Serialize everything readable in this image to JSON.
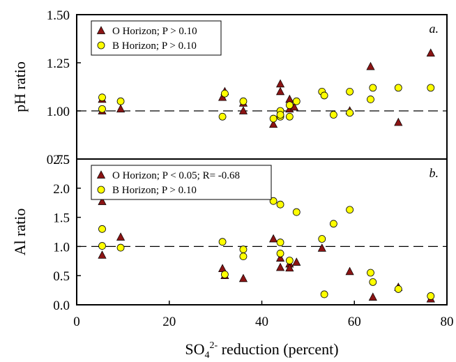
{
  "chart_data": [
    {
      "type": "scatter",
      "panel_tag": "a.",
      "ylabel": "pH ratio",
      "xlim": [
        0,
        80
      ],
      "ylim": [
        0.75,
        1.5
      ],
      "yticks": [
        "0.75",
        "1.00",
        "1.25",
        "1.50"
      ],
      "reference_line": 1.0,
      "legend_position": "top-left",
      "series": [
        {
          "name": "O Horizon; P > 0.10",
          "marker": "triangle",
          "color": "#8b1414",
          "x": [
            5.5,
            5.5,
            9.5,
            31.5,
            32.0,
            36.0,
            36.0,
            42.5,
            44.0,
            44.0,
            46.0,
            46.0,
            47.0,
            59.0,
            63.5,
            69.5,
            76.5
          ],
          "y": [
            1.06,
            1.0,
            1.01,
            1.07,
            1.1,
            1.0,
            1.04,
            0.93,
            1.14,
            1.1,
            1.06,
            1.01,
            1.02,
            1.0,
            1.23,
            0.94,
            1.3
          ]
        },
        {
          "name": "B Horizon; P > 0.10",
          "marker": "circle",
          "color": "#ffff00",
          "x": [
            5.5,
            5.5,
            9.5,
            31.5,
            32.0,
            36.0,
            42.5,
            44.0,
            44.0,
            44.0,
            46.0,
            46.0,
            47.5,
            53.0,
            53.5,
            55.5,
            59.0,
            59.0,
            63.5,
            64.0,
            69.5,
            76.5
          ],
          "y": [
            1.07,
            1.01,
            1.05,
            0.97,
            1.09,
            1.05,
            0.96,
            1.0,
            0.97,
            0.98,
            0.97,
            1.03,
            1.05,
            1.1,
            1.08,
            0.98,
            1.1,
            0.99,
            1.06,
            1.12,
            1.12,
            1.12
          ]
        }
      ]
    },
    {
      "type": "scatter",
      "panel_tag": "b.",
      "ylabel": "Al ratio",
      "xlabel": "SO4 2- reduction (percent)",
      "xlabel_parts": {
        "main": "SO",
        "sub": "4",
        "sup": "2-",
        "rest": " reduction (percent)"
      },
      "xlim": [
        0,
        80
      ],
      "xticks": [
        "0",
        "20",
        "40",
        "60",
        "80"
      ],
      "ylim": [
        0.0,
        2.5
      ],
      "yticks": [
        "0.0",
        "0.5",
        "1.0",
        "1.5",
        "2.0",
        "2.5"
      ],
      "reference_line": 1.0,
      "legend_position": "top-left",
      "series": [
        {
          "name": "O Horizon; P < 0.05; R= -0.68",
          "marker": "triangle",
          "color": "#8b1414",
          "x": [
            5.5,
            5.5,
            9.5,
            31.5,
            32.0,
            36.0,
            42.5,
            44.0,
            44.0,
            46.0,
            46.0,
            47.5,
            53.0,
            59.0,
            64.0,
            69.5,
            76.5
          ],
          "y": [
            1.77,
            0.85,
            1.16,
            0.62,
            0.5,
            0.45,
            1.13,
            0.8,
            0.64,
            0.7,
            0.63,
            0.73,
            0.97,
            0.57,
            0.13,
            0.3,
            0.1
          ]
        },
        {
          "name": "B Horizon; P > 0.10",
          "marker": "circle",
          "color": "#ffff00",
          "x": [
            5.5,
            5.5,
            9.5,
            31.5,
            32.0,
            36.0,
            36.0,
            42.5,
            44.0,
            44.0,
            44.0,
            46.0,
            47.5,
            53.0,
            53.5,
            55.5,
            59.0,
            63.5,
            64.0,
            69.5,
            76.5
          ],
          "y": [
            1.3,
            1.01,
            0.98,
            1.08,
            0.52,
            0.95,
            0.83,
            1.78,
            1.72,
            1.07,
            0.88,
            0.76,
            1.59,
            1.13,
            0.18,
            1.39,
            1.63,
            0.55,
            0.39,
            0.27,
            0.15
          ]
        }
      ]
    }
  ]
}
